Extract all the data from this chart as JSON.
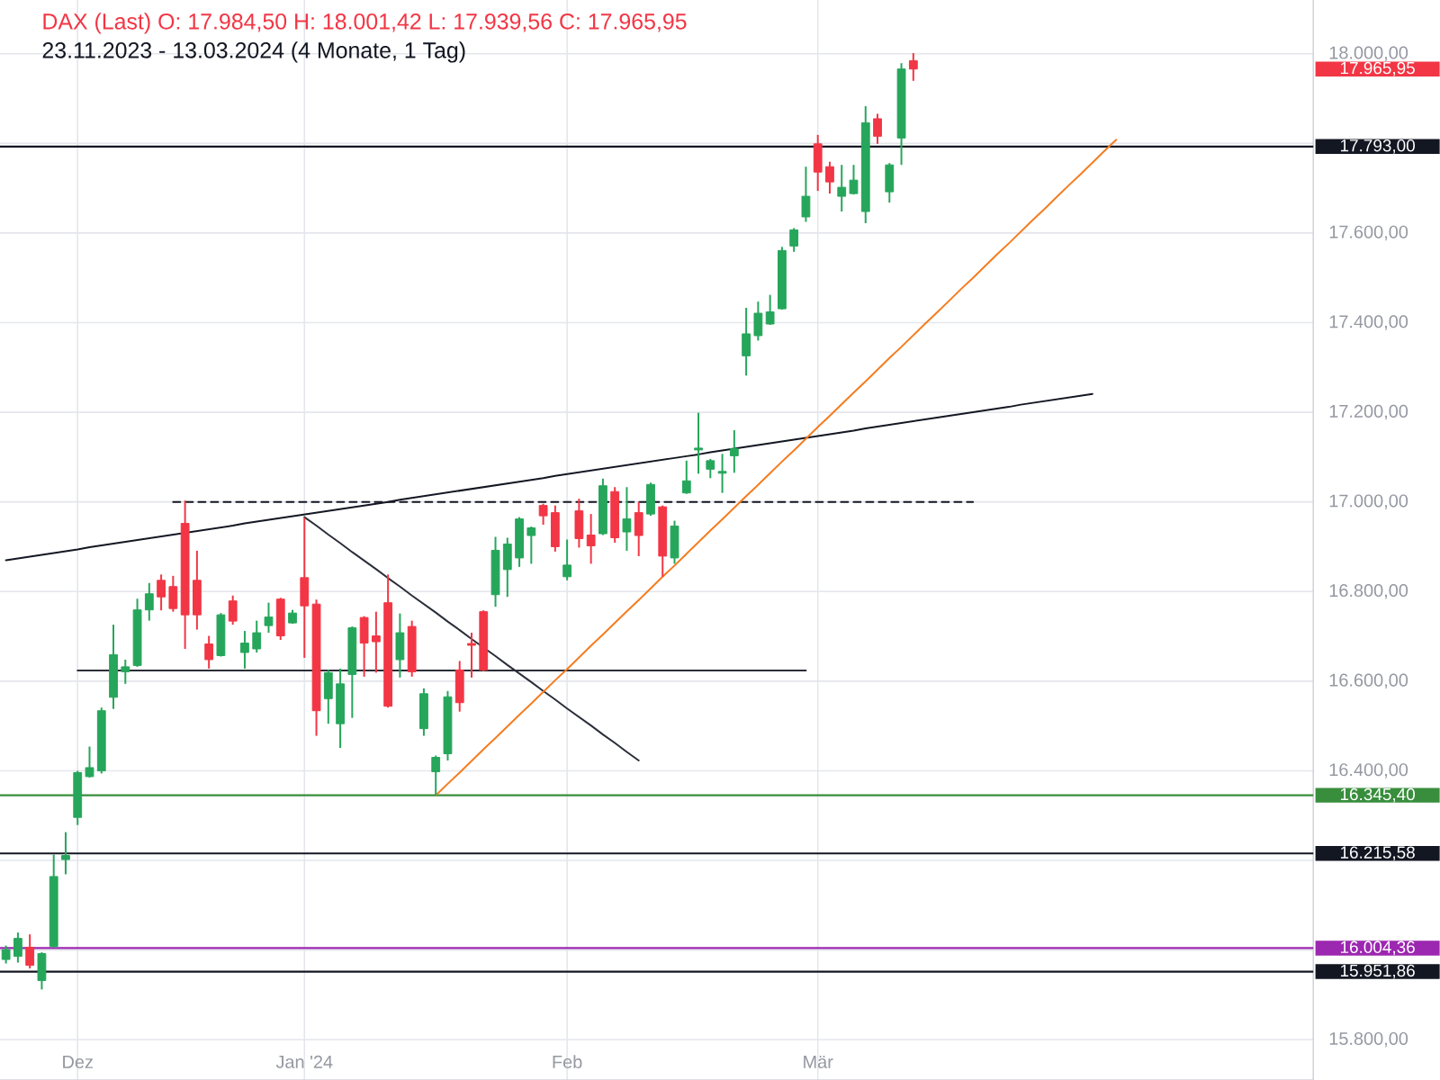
{
  "chart_data": {
    "type": "candlestick",
    "title": "DAX (Last)  O: 17.984,50  H: 18.001,42  L: 17.939,56  C: 17.965,95",
    "subtitle": "23.11.2023 - 13.03.2024  (4 Monate, 1 Tag)",
    "categories": [
      null,
      null,
      null,
      null,
      null,
      null,
      "Dez",
      null,
      null,
      null,
      null,
      null,
      null,
      null,
      null,
      null,
      null,
      null,
      null,
      null,
      null,
      null,
      null,
      null,
      null,
      "Jan '24",
      null,
      null,
      null,
      null,
      null,
      null,
      null,
      null,
      null,
      null,
      null,
      null,
      null,
      null,
      null,
      null,
      null,
      null,
      null,
      null,
      null,
      "Feb",
      null,
      null,
      null,
      null,
      null,
      null,
      null,
      null,
      null,
      null,
      null,
      null,
      null,
      null,
      null,
      null,
      null,
      null,
      null,
      null,
      "Mär",
      null,
      null,
      null,
      null,
      null,
      null,
      null,
      null,
      null,
      null,
      null,
      null,
      null,
      null,
      null,
      null,
      null,
      null,
      null,
      null,
      null,
      null,
      null,
      null,
      null,
      null,
      null,
      null,
      null,
      null,
      null,
      null,
      null,
      null,
      null,
      null,
      null,
      null,
      null,
      null,
      null
    ],
    "series": [
      {
        "ohlc": [
          [
            15979,
            16010,
            15970,
            16001
          ],
          [
            15986,
            16039,
            15972,
            16026
          ],
          [
            16006,
            16035,
            15959,
            15966
          ],
          [
            15932,
            15995,
            15912,
            15992
          ],
          [
            16008,
            16213,
            16005,
            16164
          ],
          [
            16202,
            16263,
            16169,
            16211
          ],
          [
            16296,
            16400,
            16279,
            16396
          ],
          [
            16387,
            16454,
            16385,
            16407
          ],
          [
            16400,
            16541,
            16394,
            16534
          ],
          [
            16564,
            16726,
            16538,
            16659
          ],
          [
            16621,
            16648,
            16594,
            16632
          ],
          [
            16635,
            16784,
            16632,
            16759
          ],
          [
            16759,
            16819,
            16735,
            16795
          ],
          [
            16825,
            16838,
            16758,
            16788
          ],
          [
            16811,
            16835,
            16755,
            16762
          ],
          [
            16952,
            17003,
            16672,
            16748
          ],
          [
            16825,
            16891,
            16715,
            16748
          ],
          [
            16683,
            16701,
            16628,
            16648
          ],
          [
            16657,
            16752,
            16655,
            16748
          ],
          [
            16779,
            16791,
            16726,
            16734
          ],
          [
            16664,
            16712,
            16628,
            16685
          ],
          [
            16672,
            16735,
            16664,
            16708
          ],
          [
            16724,
            16775,
            16708,
            16743
          ],
          [
            16783,
            16786,
            16692,
            16701
          ],
          [
            16730,
            16759,
            16728,
            16752
          ],
          [
            16831,
            16965,
            16652,
            16768
          ],
          [
            16772,
            16782,
            16478,
            16534
          ],
          [
            16561,
            16625,
            16505,
            16619
          ],
          [
            16505,
            16628,
            16451,
            16594
          ],
          [
            16615,
            16722,
            16518,
            16719
          ],
          [
            16742,
            16745,
            16610,
            16685
          ],
          [
            16701,
            16755,
            16619,
            16688
          ],
          [
            16775,
            16838,
            16541,
            16544
          ],
          [
            16648,
            16751,
            16608,
            16708
          ],
          [
            16722,
            16735,
            16610,
            16621
          ],
          [
            16494,
            16584,
            16478,
            16572
          ],
          [
            16398,
            16434,
            16344,
            16430
          ],
          [
            16438,
            16578,
            16423,
            16565
          ],
          [
            16625,
            16645,
            16532,
            16552
          ],
          [
            16684,
            16708,
            16608,
            16680
          ],
          [
            16755,
            16758,
            16622,
            16625
          ],
          [
            16793,
            16922,
            16766,
            16892
          ],
          [
            16849,
            16920,
            16788,
            16906
          ],
          [
            16875,
            16966,
            16855,
            16962
          ],
          [
            16925,
            16945,
            16862,
            16942
          ],
          [
            16992,
            16996,
            16949,
            16969
          ],
          [
            16976,
            16992,
            16889,
            16900
          ],
          [
            16833,
            16916,
            16825,
            16859
          ],
          [
            16980,
            17007,
            16898,
            16918
          ],
          [
            16926,
            16973,
            16862,
            16902
          ],
          [
            16929,
            17052,
            16926,
            17036
          ],
          [
            17023,
            17033,
            16909,
            16920
          ],
          [
            16933,
            17033,
            16891,
            16962
          ],
          [
            16976,
            17000,
            16879,
            16925
          ],
          [
            16973,
            17043,
            16969,
            17039
          ],
          [
            16989,
            16992,
            16833,
            16879
          ],
          [
            16875,
            16958,
            16862,
            16946
          ],
          [
            17020,
            17092,
            17018,
            17047
          ],
          [
            17116,
            17199,
            17063,
            17120
          ],
          [
            17073,
            17096,
            17053,
            17092
          ],
          [
            17064,
            17107,
            17020,
            17068
          ],
          [
            17103,
            17160,
            17065,
            17119
          ],
          [
            17326,
            17433,
            17282,
            17375
          ],
          [
            17371,
            17447,
            17360,
            17421
          ],
          [
            17397,
            17462,
            17395,
            17424
          ],
          [
            17431,
            17569,
            17429,
            17561
          ],
          [
            17571,
            17611,
            17558,
            17607
          ],
          [
            17636,
            17748,
            17625,
            17682
          ],
          [
            17799,
            17819,
            17694,
            17736
          ],
          [
            17748,
            17759,
            17688,
            17714
          ],
          [
            17682,
            17752,
            17648,
            17702
          ],
          [
            17688,
            17752,
            17686,
            17718
          ],
          [
            17648,
            17883,
            17622,
            17846
          ],
          [
            17855,
            17866,
            17799,
            17816
          ],
          [
            17692,
            17756,
            17668,
            17752
          ],
          [
            17812,
            17979,
            17752,
            17966
          ],
          [
            17984.5,
            18001.42,
            17939.56,
            17965.95
          ],
          null,
          null,
          null,
          null,
          null,
          null,
          null,
          null,
          null,
          null,
          null,
          null,
          null,
          null,
          null,
          null,
          null,
          null,
          null,
          null,
          null,
          null,
          null,
          null,
          null,
          null,
          null,
          null,
          null,
          null,
          null,
          null,
          null
        ],
        "colors": [
          "#26a65b",
          "#26a65b",
          "#f23645",
          "#26a65b",
          "#26a65b",
          "#26a65b",
          "#26a65b",
          "#26a65b",
          "#26a65b",
          "#26a65b",
          "#26a65b",
          "#26a65b",
          "#26a65b",
          "#f23645",
          "#f23645",
          "#f23645",
          "#f23645",
          "#f23645",
          "#26a65b",
          "#f23645",
          "#26a65b",
          "#26a65b",
          "#26a65b",
          "#f23645",
          "#26a65b",
          "#f23645",
          "#f23645",
          "#26a65b",
          "#26a65b",
          "#26a65b",
          "#f23645",
          "#f23645",
          "#f23645",
          "#26a65b",
          "#f23645",
          "#26a65b",
          "#26a65b",
          "#26a65b",
          "#f23645",
          "#f23645",
          "#f23645",
          "#26a65b",
          "#26a65b",
          "#26a65b",
          "#26a65b",
          "#f23645",
          "#f23645",
          "#26a65b",
          "#f23645",
          "#f23645",
          "#26a65b",
          "#f23645",
          "#26a65b",
          "#f23645",
          "#26a65b",
          "#f23645",
          "#26a65b",
          "#26a65b",
          "#26a65b",
          "#26a65b",
          "#26a65b",
          "#26a65b",
          "#26a65b",
          "#26a65b",
          "#26a65b",
          "#26a65b",
          "#26a65b",
          "#26a65b",
          "#f23645",
          "#f23645",
          "#26a65b",
          "#26a65b",
          "#26a65b",
          "#f23645",
          "#26a65b",
          "#26a65b",
          "#f23645",
          null,
          null,
          null,
          null,
          null,
          null,
          null,
          null,
          null,
          null,
          null,
          null,
          null,
          null,
          null,
          null,
          null,
          null,
          null,
          null,
          null,
          null,
          null,
          null,
          null,
          null,
          null,
          null,
          null,
          null,
          null,
          null,
          null
        ]
      },
      {
        "type": "line",
        "color": "#131722",
        "values": [
          16870,
          16874,
          16878,
          16882,
          16886,
          16890,
          16894,
          16899,
          16903,
          16907,
          16911,
          16915,
          16919,
          16923,
          16927,
          16931,
          16935,
          16939,
          16943,
          16947,
          16952,
          16956,
          16960,
          16964,
          16968,
          16972,
          16976,
          16980,
          16984,
          16988,
          16992,
          16996,
          17000,
          17005,
          17009,
          17013,
          17017,
          17021,
          17025,
          17029,
          17033,
          17037,
          17041,
          17045,
          17049,
          17053,
          17058,
          17062,
          17066,
          17070,
          17074,
          17078,
          17082,
          17086,
          17090,
          17094,
          17098,
          17102,
          17106,
          17111,
          17115,
          17119,
          17123,
          17127,
          17131,
          17135,
          17139,
          17143,
          17147,
          17151,
          17155,
          17159,
          17164,
          17168,
          17172,
          17176,
          17180,
          17184,
          17188,
          17192,
          17196,
          17200,
          17204,
          17208,
          17212,
          17217,
          17221,
          17225,
          17229,
          17233,
          17237,
          17241,
          null,
          null,
          null,
          null,
          null,
          null,
          null,
          null,
          null,
          null,
          null,
          null,
          null,
          null,
          null,
          null,
          null,
          null
        ]
      },
      {
        "type": "line",
        "color": "#2a2e39",
        "values": [
          null,
          null,
          null,
          null,
          null,
          null,
          null,
          null,
          null,
          null,
          null,
          null,
          null,
          null,
          null,
          null,
          null,
          null,
          null,
          null,
          null,
          null,
          null,
          null,
          null,
          16966,
          16947,
          16927,
          16908,
          16888,
          16869,
          16850,
          16830,
          16811,
          16791,
          16772,
          16753,
          16733,
          16714,
          16694,
          16675,
          16656,
          16636,
          16617,
          16598,
          16578,
          16559,
          16539,
          16520,
          16501,
          16481,
          16462,
          16442,
          16423,
          null,
          null,
          null,
          null,
          null,
          null,
          null,
          null,
          null,
          null,
          null,
          null,
          null,
          null,
          null,
          null,
          null,
          null,
          null,
          null,
          null,
          null,
          null,
          null,
          null,
          null,
          null,
          null,
          null,
          null,
          null,
          null,
          null,
          null,
          null,
          null,
          null,
          null,
          null,
          null,
          null,
          null,
          null,
          null,
          null,
          null,
          null,
          null,
          null,
          null,
          null,
          null,
          null,
          null,
          null,
          null
        ]
      },
      {
        "type": "line",
        "color": "#2a2e39",
        "values": [
          null,
          null,
          null,
          null,
          null,
          null,
          16624,
          16624,
          16624,
          16624,
          16624,
          16624,
          16624,
          16624,
          16624,
          16624,
          16624,
          16624,
          16624,
          16624,
          16624,
          16624,
          16624,
          16624,
          16624,
          16624,
          16624,
          16624,
          16624,
          16624,
          16624,
          16624,
          16624,
          16624,
          16624,
          16624,
          16624,
          16624,
          16624,
          16624,
          16624,
          16624,
          16624,
          16624,
          16624,
          16624,
          16624,
          16624,
          16624,
          16624,
          16624,
          16624,
          16624,
          16624,
          16624,
          16624,
          16624,
          16624,
          16624,
          16624,
          16624,
          16624,
          16624,
          16624,
          16624,
          16624,
          16624,
          16624,
          null,
          null,
          null,
          null,
          null,
          null,
          null,
          null,
          null,
          null,
          null,
          null,
          null,
          null,
          null,
          null,
          null,
          null,
          null,
          null,
          null,
          null,
          null,
          null,
          null,
          null,
          null,
          null,
          null,
          null,
          null,
          null,
          null,
          null,
          null,
          null,
          null,
          null,
          null,
          null,
          null,
          null
        ]
      },
      {
        "type": "line",
        "color": "#131722",
        "line_style": "dashed",
        "values": [
          null,
          null,
          null,
          null,
          null,
          null,
          null,
          null,
          null,
          null,
          null,
          null,
          null,
          null,
          17000,
          17000,
          17000,
          17000,
          17000,
          17000,
          17000,
          17000,
          17000,
          17000,
          17000,
          17000,
          17000,
          17000,
          17000,
          17000,
          17000,
          17000,
          17000,
          17000,
          17000,
          17000,
          17000,
          17000,
          17000,
          17000,
          17000,
          17000,
          17000,
          17000,
          17000,
          17000,
          17000,
          17000,
          17000,
          17000,
          17000,
          17000,
          17000,
          17000,
          17000,
          17000,
          17000,
          17000,
          17000,
          17000,
          17000,
          17000,
          17000,
          17000,
          17000,
          17000,
          17000,
          17000,
          17000,
          17000,
          17000,
          17000,
          17000,
          17000,
          17000,
          17000,
          17000,
          17000,
          17000,
          17000,
          17000,
          17000,
          null,
          null,
          null,
          null,
          null,
          null,
          null,
          null,
          null,
          null,
          null,
          null,
          null,
          null,
          null,
          null,
          null,
          null,
          null,
          null,
          null,
          null,
          null,
          null,
          null,
          null,
          null,
          null
        ]
      },
      {
        "type": "line",
        "color": "#f57c1f",
        "values": [
          null,
          null,
          null,
          null,
          null,
          null,
          null,
          null,
          null,
          null,
          null,
          null,
          null,
          null,
          null,
          null,
          null,
          null,
          null,
          null,
          null,
          null,
          null,
          null,
          null,
          null,
          null,
          null,
          null,
          null,
          null,
          null,
          null,
          null,
          null,
          null,
          16345,
          16371,
          16396,
          16422,
          16448,
          16473,
          16499,
          16525,
          16550,
          16576,
          16602,
          16627,
          16653,
          16679,
          16704,
          16730,
          16756,
          16781,
          16807,
          16833,
          16858,
          16884,
          16910,
          16936,
          16961,
          16987,
          17013,
          17038,
          17064,
          17090,
          17115,
          17141,
          17167,
          17192,
          17218,
          17244,
          17269,
          17295,
          17321,
          17346,
          17372,
          17398,
          17423,
          17449,
          17475,
          17500,
          17526,
          17552,
          17577,
          17603,
          17629,
          17654,
          17680,
          17706,
          17731,
          17757,
          17783,
          17808,
          null,
          null,
          null,
          null,
          null,
          null,
          null,
          null,
          null,
          null,
          null,
          null,
          null,
          null,
          null,
          null
        ]
      }
    ],
    "ylim": [
      15710,
      18120
    ],
    "yticks": [
      {
        "value": 15800,
        "label": "15.800,00"
      },
      {
        "value": 16000,
        "label": null
      },
      {
        "value": 16200,
        "label": null
      },
      {
        "value": 16400,
        "label": "16.400,00"
      },
      {
        "value": 16600,
        "label": "16.600,00"
      },
      {
        "value": 16800,
        "label": "16.800,00"
      },
      {
        "value": 17000,
        "label": "17.000,00"
      },
      {
        "value": 17200,
        "label": "17.200,00"
      },
      {
        "value": 17400,
        "label": "17.400,00"
      },
      {
        "value": 17600,
        "label": "17.600,00"
      },
      {
        "value": 17800,
        "label": null
      },
      {
        "value": 18000,
        "label": "18.000,00"
      }
    ],
    "grid": true,
    "ref_lines": [
      {
        "axis": "y",
        "value": 17793,
        "label": "17.793,00",
        "color": "#131722"
      },
      {
        "axis": "y",
        "value": 16345.4,
        "label": "16.345,40",
        "color": "#388e3c"
      },
      {
        "axis": "y",
        "value": 16215.58,
        "label": "16.215,58",
        "color": "#131722"
      },
      {
        "axis": "y",
        "value": 16004.36,
        "label": "16.004,36",
        "color": "#9c27b0"
      },
      {
        "axis": "y",
        "value": 15951.86,
        "label": "15.951,86",
        "color": "#131722"
      }
    ],
    "annotations": [
      "17.965,95"
    ]
  }
}
